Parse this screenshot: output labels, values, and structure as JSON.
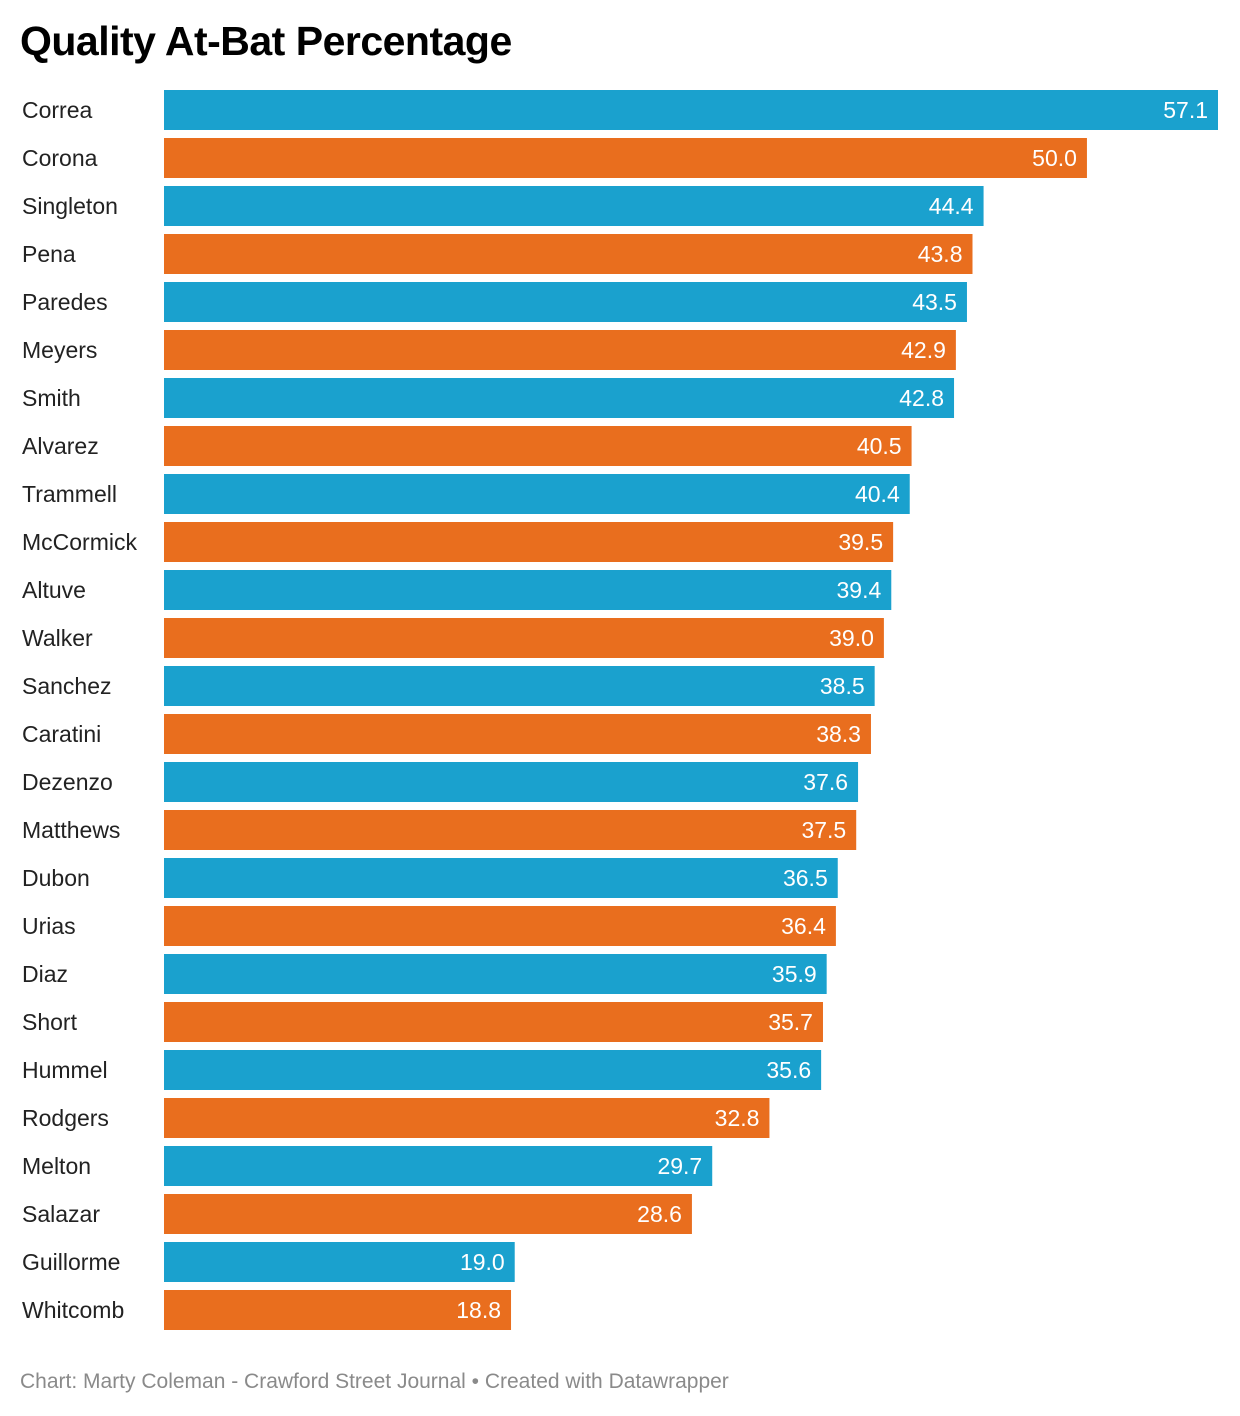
{
  "colors": {
    "blue": "#1aa1ce",
    "orange": "#e96e1e",
    "label_text": "#222222",
    "value_text": "#ffffff"
  },
  "chart_data": {
    "type": "bar",
    "orientation": "horizontal",
    "title": "Quality At-Bat Percentage",
    "xlim": [
      0,
      57.1
    ],
    "categories": [
      "Correa",
      "Corona",
      "Singleton",
      "Pena",
      "Paredes",
      "Meyers",
      "Smith",
      "Alvarez",
      "Trammell",
      "McCormick",
      "Altuve",
      "Walker",
      "Sanchez",
      "Caratini",
      "Dezenzo",
      "Matthews",
      "Dubon",
      "Urias",
      "Diaz",
      "Short",
      "Hummel",
      "Rodgers",
      "Melton",
      "Salazar",
      "Guillorme",
      "Whitcomb"
    ],
    "values": [
      57.1,
      50.0,
      44.4,
      43.8,
      43.5,
      42.9,
      42.8,
      40.5,
      40.4,
      39.5,
      39.4,
      39.0,
      38.5,
      38.3,
      37.6,
      37.5,
      36.5,
      36.4,
      35.9,
      35.7,
      35.6,
      32.8,
      29.7,
      28.6,
      19.0,
      18.8
    ],
    "value_labels": [
      "57.1",
      "50.0",
      "44.4",
      "43.8",
      "43.5",
      "42.9",
      "42.8",
      "40.5",
      "40.4",
      "39.5",
      "39.4",
      "39.0",
      "38.5",
      "38.3",
      "37.6",
      "37.5",
      "36.5",
      "36.4",
      "35.9",
      "35.7",
      "35.6",
      "32.8",
      "29.7",
      "28.6",
      "19.0",
      "18.8"
    ],
    "bar_colors": [
      "blue",
      "orange",
      "blue",
      "orange",
      "blue",
      "orange",
      "blue",
      "orange",
      "blue",
      "orange",
      "blue",
      "orange",
      "blue",
      "orange",
      "blue",
      "orange",
      "blue",
      "orange",
      "blue",
      "orange",
      "blue",
      "orange",
      "blue",
      "orange",
      "blue",
      "orange"
    ]
  },
  "footer": {
    "text": "Chart: Marty Coleman - Crawford Street Journal • Created with Datawrapper"
  }
}
